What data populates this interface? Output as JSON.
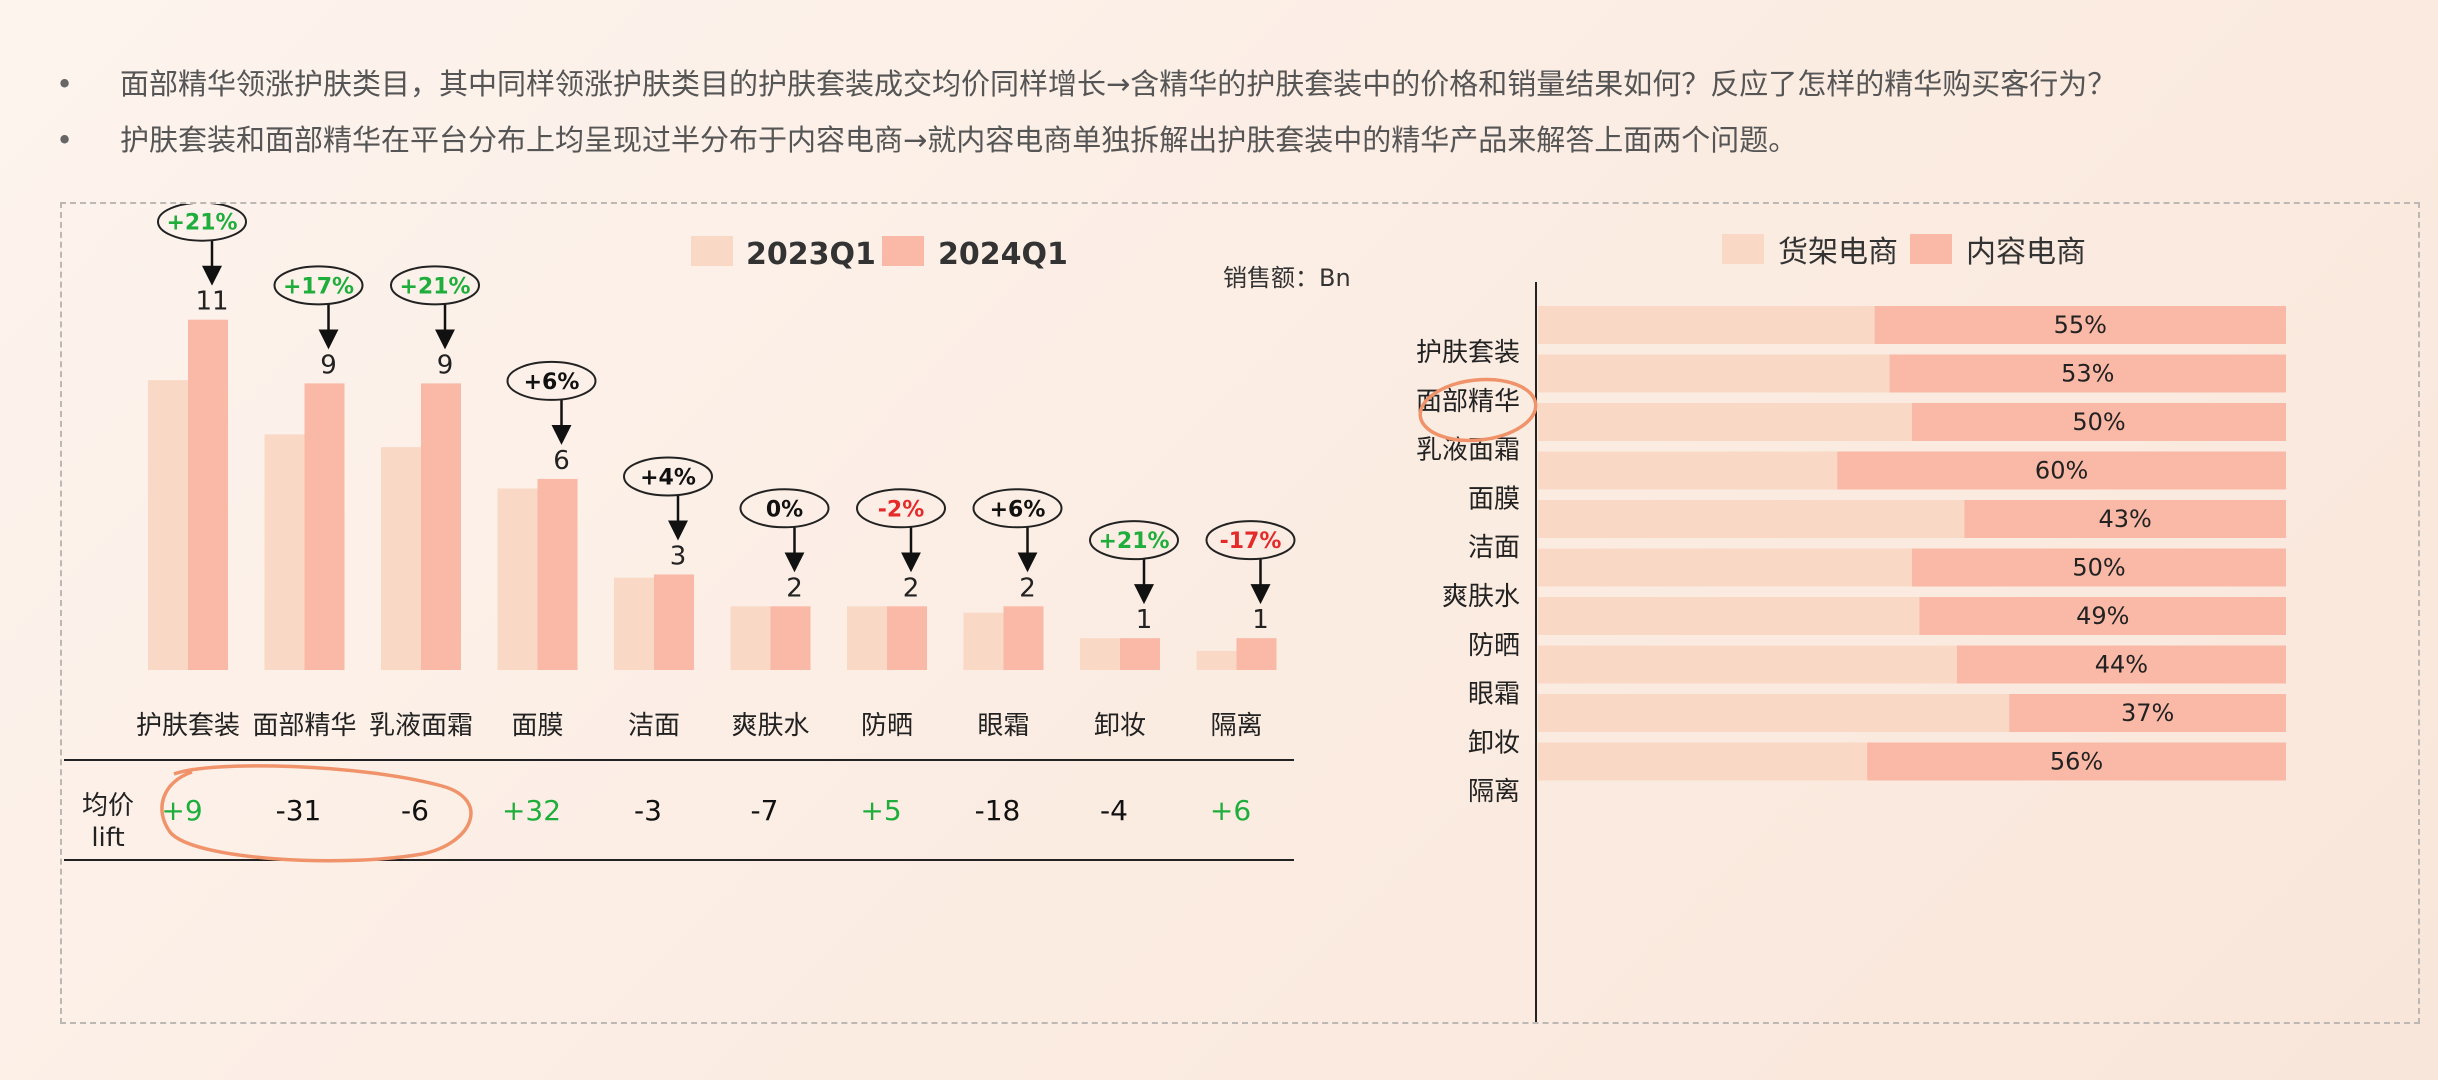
{
  "notes": {
    "bullet_marker": "•",
    "items": [
      "面部精华领涨护肤类目，其中同样领涨护肤类目的护肤套装成交均价同样增长→含精华的护肤套装中的价格和销量结果如何？反应了怎样的精华购买客行为？",
      "护肤套装和面部精华在平台分布上均呈现过半分布于内容电商→就内容电商单独拆解出护肤套装中的精华产品来解答上面两个问题。"
    ]
  },
  "colors": {
    "q2023": "#f9d9c6",
    "q2024": "#f9b9a6",
    "positive": "#1fae3c",
    "negative": "#e52a2a",
    "circle": "#f0936a",
    "shelf": "#f9d9c6",
    "content": "#f9b9a6"
  },
  "chart_data": [
    {
      "type": "bar",
      "unit_note": "销售额：Bn",
      "legend_position": "top",
      "categories": [
        "护肤套装",
        "面部精华",
        "乳液面霜",
        "面膜",
        "洁面",
        "爽肤水",
        "防晒",
        "眼霜",
        "卸妆",
        "隔离"
      ],
      "series": [
        {
          "name": "2023Q1",
          "values": [
            9.1,
            7.4,
            7.0,
            5.7,
            2.9,
            2.0,
            2.0,
            1.8,
            1.0,
            0.6
          ]
        },
        {
          "name": "2024Q1",
          "values": [
            11,
            9,
            9,
            6,
            3,
            2,
            2,
            2,
            1,
            1
          ]
        }
      ],
      "data_labels": [
        "11",
        "9",
        "9",
        "6",
        "3",
        "2",
        "2",
        "2",
        "1",
        "1"
      ],
      "growth_labels": [
        "+21%",
        "+17%",
        "+21%",
        "+6%",
        "+4%",
        "0%",
        "-2%",
        "+6%",
        "+21%",
        "-17%"
      ],
      "growth_style": [
        "positive",
        "positive",
        "positive",
        "neutral",
        "neutral",
        "neutral",
        "negative",
        "neutral",
        "positive",
        "negative"
      ],
      "ylim": [
        0,
        13
      ],
      "lift_row": {
        "label_line1": "均价",
        "label_line2": "lift",
        "values": [
          "+9",
          "-31",
          "-6",
          "+32",
          "-3",
          "-7",
          "+5",
          "-18",
          "-4",
          "+6"
        ],
        "style": [
          "positive",
          "neutral",
          "neutral",
          "positive",
          "neutral",
          "neutral",
          "positive",
          "neutral",
          "neutral",
          "positive"
        ]
      }
    },
    {
      "type": "bar",
      "orientation": "horizontal-stacked-100",
      "legend_position": "top",
      "categories": [
        "护肤套装",
        "面部精华",
        "乳液面霜",
        "面膜",
        "洁面",
        "爽肤水",
        "防晒",
        "眼霜",
        "卸妆",
        "隔离"
      ],
      "series": [
        {
          "name": "货架电商",
          "values": [
            45,
            47,
            50,
            40,
            57,
            50,
            51,
            56,
            63,
            44
          ]
        },
        {
          "name": "内容电商",
          "values": [
            55,
            53,
            50,
            60,
            43,
            50,
            49,
            44,
            37,
            56
          ]
        }
      ],
      "data_labels": [
        "55%",
        "53%",
        "50%",
        "60%",
        "43%",
        "50%",
        "49%",
        "44%",
        "37%",
        "56%"
      ],
      "xlim": [
        0,
        100
      ]
    }
  ]
}
